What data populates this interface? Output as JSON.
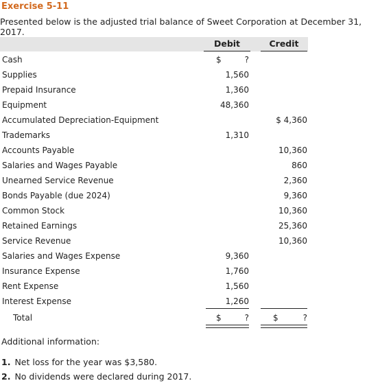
{
  "exercise_title": "Exercise 5-11",
  "intro": "Presented below is the adjusted trial balance of Sweet Corporation at December 31, 2017.",
  "columns": {
    "debit": "Debit",
    "credit": "Credit"
  },
  "rows": [
    {
      "account": "Cash",
      "debit_sign": "$",
      "debit": "?",
      "credit": ""
    },
    {
      "account": "Supplies",
      "debit": "1,560",
      "credit": ""
    },
    {
      "account": "Prepaid Insurance",
      "debit": "1,360",
      "credit": ""
    },
    {
      "account": "Equipment",
      "debit": "48,360",
      "credit": ""
    },
    {
      "account": "Accumulated Depreciation-Equipment",
      "debit": "",
      "credit": "$ 4,360"
    },
    {
      "account": "Trademarks",
      "debit": "1,310",
      "credit": ""
    },
    {
      "account": "Accounts Payable",
      "debit": "",
      "credit": "10,360"
    },
    {
      "account": "Salaries and Wages Payable",
      "debit": "",
      "credit": "860"
    },
    {
      "account": "Unearned Service Revenue",
      "debit": "",
      "credit": "2,360"
    },
    {
      "account": "Bonds Payable (due 2024)",
      "debit": "",
      "credit": "9,360"
    },
    {
      "account": "Common Stock",
      "debit": "",
      "credit": "10,360"
    },
    {
      "account": "Retained Earnings",
      "debit": "",
      "credit": "25,360"
    },
    {
      "account": "Service Revenue",
      "debit": "",
      "credit": "10,360"
    },
    {
      "account": "Salaries and Wages Expense",
      "debit": "9,360",
      "credit": ""
    },
    {
      "account": "Insurance Expense",
      "debit": "1,760",
      "credit": ""
    },
    {
      "account": "Rent Expense",
      "debit": "1,560",
      "credit": ""
    },
    {
      "account": "Interest Expense",
      "debit": "1,260",
      "credit": ""
    }
  ],
  "total": {
    "label": "Total",
    "debit_sign": "$",
    "debit": "?",
    "credit_sign": "$",
    "credit": "?"
  },
  "additional_title": "Additional information:",
  "notes": [
    {
      "num": "1.",
      "text": "Net loss for the year was $3,580."
    },
    {
      "num": "2.",
      "text": "No dividends were declared during 2017."
    }
  ]
}
